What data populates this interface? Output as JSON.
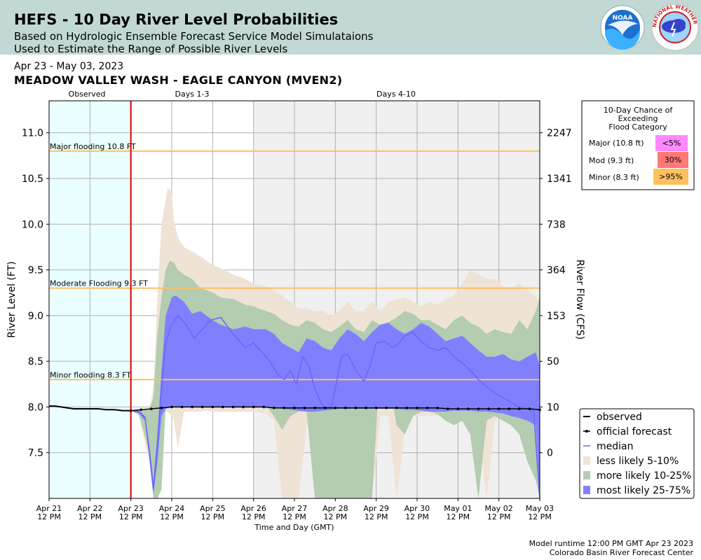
{
  "header": {
    "title": "HEFS - 10 Day River Level Probabilities",
    "subtitle1": "Based on Hydrologic Ensemble Forecast Service Model Simulataions",
    "subtitle2": "Used to Estimate the Range of Possible River Levels",
    "logo_noaa": "NOAA",
    "logo_nws": "NATIONAL WEATHER SERVICE"
  },
  "date_range": "Apr 23 - May 03, 2023",
  "station": "MEADOW VALLEY WASH - EAGLE CANYON (MVEN2)",
  "footer": {
    "line1": "Model runtime 12:00 PM GMT Apr 23 2023",
    "line2": "Colorado Basin River Forecast Center"
  },
  "colors": {
    "observed_bg": "#eaffff",
    "days410_bg": "#f0f0f0",
    "band_5_10": "#eee3d5",
    "band_10_25": "#b4ccb0",
    "band_25_75": "#8080ff",
    "median": "#6666ff",
    "threshold": "#ffc060",
    "now_line": "#dd0000",
    "major_box": "#ff88ff",
    "mod_box": "#ff7777",
    "minor_box": "#ffc060"
  },
  "chart_data": {
    "type": "area",
    "title": "",
    "xlabel": "Time and Day (GMT)",
    "ylabel": "River Level (FT)",
    "ylabel_right": "River Flow (CFS)",
    "x_unit": "days after Apr 21 12 PM",
    "xlim": [
      0,
      12
    ],
    "ylim": [
      7.0,
      11.35
    ],
    "period_labels": [
      "Observed",
      "Days 1-3",
      "Days 4-10"
    ],
    "x_ticks": [
      {
        "d1": "Apr 21",
        "d2": "12 PM"
      },
      {
        "d1": "Apr 22",
        "d2": "12 PM"
      },
      {
        "d1": "Apr 23",
        "d2": "12 PM"
      },
      {
        "d1": "Apr 24",
        "d2": "12 PM"
      },
      {
        "d1": "Apr 25",
        "d2": "12 PM"
      },
      {
        "d1": "Apr 26",
        "d2": "12 PM"
      },
      {
        "d1": "Apr 27",
        "d2": "12 PM"
      },
      {
        "d1": "Apr 28",
        "d2": "12 PM"
      },
      {
        "d1": "Apr 29",
        "d2": "12 PM"
      },
      {
        "d1": "Apr 30",
        "d2": "12 PM"
      },
      {
        "d1": "May 01",
        "d2": "12 PM"
      },
      {
        "d1": "May 02",
        "d2": "12 PM"
      },
      {
        "d1": "May 03",
        "d2": "12 PM"
      }
    ],
    "y_ticks": [
      7.5,
      8.0,
      8.5,
      9.0,
      9.5,
      10.0,
      10.5,
      11.0
    ],
    "y_tick_labels": [
      "7.5",
      "8.0",
      "8.5",
      "9.0",
      "9.5",
      "10.0",
      "10.5",
      "11.0"
    ],
    "y2_ticks": [
      {
        "stage": 7.5,
        "label": "0"
      },
      {
        "stage": 8.0,
        "label": "10"
      },
      {
        "stage": 8.5,
        "label": "50"
      },
      {
        "stage": 9.0,
        "label": "153"
      },
      {
        "stage": 9.5,
        "label": "364"
      },
      {
        "stage": 10.0,
        "label": "738"
      },
      {
        "stage": 10.5,
        "label": "1341"
      },
      {
        "stage": 11.0,
        "label": "2247"
      }
    ],
    "thresholds": [
      {
        "name": "Major flooding 10.8 FT",
        "value": 10.8
      },
      {
        "name": "Moderate Flooding 9.3 FT",
        "value": 9.3
      },
      {
        "name": "Minor flooding 8.3 FT",
        "value": 8.3
      }
    ],
    "forecast_start": 2.0,
    "days410_start": 5.0,
    "observed": {
      "x": [
        0,
        0.15,
        0.3,
        0.45,
        0.6,
        0.8,
        1.0,
        1.2,
        1.4,
        1.6,
        1.8,
        2.0
      ],
      "y": [
        8.01,
        8.01,
        8.0,
        7.99,
        7.98,
        7.98,
        7.98,
        7.98,
        7.97,
        7.97,
        7.96,
        7.96
      ]
    },
    "official_forecast": {
      "x": [
        2.0,
        2.25,
        2.5,
        2.75,
        3.0,
        3.25,
        3.5,
        3.75,
        4.0,
        4.25,
        4.5,
        4.75,
        5.0,
        5.25,
        5.5,
        5.75,
        6.0,
        6.25,
        6.5,
        6.75,
        7.0,
        7.25,
        7.5,
        7.75,
        8.0,
        8.25,
        8.5,
        8.75,
        9.0,
        9.25,
        9.5,
        9.75,
        10.0,
        10.25,
        10.5,
        10.75,
        11.0,
        11.25,
        11.5,
        11.75,
        12.0
      ],
      "y": [
        7.96,
        7.97,
        7.98,
        7.99,
        8.0,
        8.0,
        8.0,
        8.0,
        8.0,
        8.0,
        8.0,
        8.0,
        8.0,
        8.0,
        7.99,
        7.99,
        7.99,
        7.99,
        7.99,
        7.99,
        7.99,
        7.99,
        7.99,
        7.99,
        7.99,
        7.99,
        7.99,
        7.99,
        7.99,
        7.99,
        7.99,
        7.98,
        7.98,
        7.98,
        7.98,
        7.98,
        7.98,
        7.98,
        7.98,
        7.98,
        7.97
      ]
    },
    "bands": [
      {
        "name": "less likely 5-10%",
        "x": [
          2.0,
          2.2,
          2.45,
          2.55,
          2.65,
          2.75,
          2.9,
          3.0,
          3.05,
          3.15,
          3.3,
          3.5,
          3.7,
          3.85,
          4.0,
          4.2,
          4.5,
          4.8,
          5.0,
          5.3,
          5.5,
          5.7,
          5.9,
          6.1,
          6.3,
          6.5,
          6.7,
          6.9,
          7.1,
          7.3,
          7.5,
          7.7,
          7.9,
          8.1,
          8.3,
          8.5,
          8.7,
          8.9,
          9.1,
          9.3,
          9.5,
          9.7,
          9.9,
          10.1,
          10.3,
          10.5,
          10.7,
          10.9,
          11.1,
          11.3,
          11.5,
          11.7,
          11.9,
          12.0
        ],
        "upper": [
          7.96,
          7.97,
          7.97,
          8.2,
          9.2,
          10.0,
          10.4,
          10.35,
          10.05,
          9.85,
          9.75,
          9.7,
          9.65,
          9.6,
          9.55,
          9.52,
          9.45,
          9.4,
          9.35,
          9.32,
          9.28,
          9.22,
          9.15,
          9.08,
          9.08,
          9.05,
          9.05,
          9.0,
          9.05,
          9.15,
          9.05,
          9.05,
          9.15,
          9.05,
          9.15,
          9.18,
          9.2,
          9.15,
          9.1,
          9.15,
          9.12,
          9.18,
          9.22,
          9.35,
          9.5,
          9.45,
          9.4,
          9.4,
          9.32,
          9.3,
          9.35,
          9.28,
          9.2,
          9.18
        ],
        "lower": [
          7.96,
          7.9,
          7.4,
          7.0,
          7.0,
          7.95,
          7.95,
          7.9,
          7.85,
          7.55,
          7.95,
          7.95,
          7.95,
          7.96,
          7.95,
          7.95,
          7.95,
          7.95,
          7.95,
          7.93,
          7.85,
          7.0,
          7.0,
          7.0,
          7.8,
          7.8,
          7.0,
          7.0,
          7.0,
          7.0,
          7.0,
          7.0,
          7.0,
          7.9,
          7.9,
          7.0,
          7.75,
          7.9,
          7.9,
          7.9,
          7.9,
          7.9,
          7.9,
          7.85,
          7.82,
          7.7,
          7.0,
          7.85,
          7.9,
          7.9,
          7.85,
          7.7,
          7.5,
          7.0
        ]
      },
      {
        "name": "more likely 10-25%",
        "x": [
          2.0,
          2.2,
          2.45,
          2.55,
          2.65,
          2.75,
          2.85,
          2.95,
          3.05,
          3.15,
          3.3,
          3.5,
          3.7,
          3.85,
          4.0,
          4.2,
          4.5,
          4.8,
          5.0,
          5.3,
          5.5,
          5.7,
          5.9,
          6.1,
          6.3,
          6.5,
          6.7,
          6.9,
          7.1,
          7.3,
          7.5,
          7.7,
          7.9,
          8.1,
          8.3,
          8.5,
          8.7,
          8.9,
          9.1,
          9.3,
          9.5,
          9.7,
          9.9,
          10.1,
          10.3,
          10.5,
          10.7,
          10.9,
          11.1,
          11.3,
          11.5,
          11.7,
          11.9,
          12.0
        ],
        "upper": [
          7.96,
          7.97,
          7.97,
          8.1,
          8.8,
          9.2,
          9.5,
          9.6,
          9.58,
          9.5,
          9.45,
          9.4,
          9.3,
          9.28,
          9.25,
          9.2,
          9.18,
          9.12,
          9.1,
          9.05,
          9.02,
          8.95,
          8.9,
          8.88,
          8.95,
          8.92,
          8.85,
          8.82,
          8.88,
          8.95,
          8.85,
          8.82,
          8.95,
          8.9,
          8.93,
          8.98,
          9.05,
          9.02,
          8.95,
          8.95,
          8.9,
          8.85,
          8.95,
          9.0,
          8.92,
          8.88,
          8.8,
          8.85,
          8.82,
          8.8,
          8.95,
          8.85,
          9.05,
          9.2
        ],
        "lower": [
          7.96,
          7.92,
          7.5,
          7.0,
          7.0,
          7.1,
          8.0,
          8.3,
          8.2,
          8.0,
          8.35,
          8.6,
          8.55,
          8.45,
          8.4,
          8.3,
          8.25,
          8.2,
          8.1,
          8.02,
          7.9,
          7.75,
          7.9,
          7.95,
          7.95,
          7.0,
          7.0,
          7.0,
          7.0,
          7.0,
          7.0,
          7.0,
          7.0,
          8.5,
          8.3,
          7.8,
          7.7,
          7.9,
          7.95,
          7.95,
          7.92,
          7.85,
          7.8,
          7.85,
          7.7,
          7.0,
          7.85,
          7.9,
          7.85,
          7.8,
          7.7,
          7.4,
          7.2,
          7.0
        ]
      },
      {
        "name": "most likely 25-75%",
        "x": [
          2.0,
          2.2,
          2.35,
          2.45,
          2.55,
          2.65,
          2.75,
          2.85,
          3.0,
          3.1,
          3.3,
          3.5,
          3.7,
          3.85,
          4.0,
          4.2,
          4.5,
          4.8,
          5.0,
          5.3,
          5.5,
          5.7,
          5.9,
          6.1,
          6.3,
          6.5,
          6.7,
          6.9,
          7.1,
          7.3,
          7.5,
          7.7,
          7.9,
          8.1,
          8.3,
          8.5,
          8.7,
          8.9,
          9.1,
          9.3,
          9.5,
          9.7,
          9.9,
          10.1,
          10.3,
          10.5,
          10.7,
          10.9,
          11.1,
          11.3,
          11.5,
          11.7,
          11.9,
          12.0
        ],
        "upper": [
          7.96,
          7.96,
          7.9,
          7.6,
          7.2,
          7.7,
          8.4,
          9.0,
          9.2,
          9.22,
          9.15,
          9.02,
          9.05,
          9.0,
          8.95,
          8.9,
          8.85,
          8.88,
          8.85,
          8.85,
          8.8,
          8.7,
          8.65,
          8.6,
          8.75,
          8.72,
          8.65,
          8.62,
          8.75,
          8.85,
          8.8,
          8.72,
          8.82,
          8.9,
          8.92,
          8.85,
          8.8,
          8.85,
          8.92,
          8.88,
          8.8,
          8.72,
          8.75,
          8.78,
          8.7,
          8.62,
          8.55,
          8.55,
          8.58,
          8.52,
          8.5,
          8.55,
          8.6,
          8.45
        ],
        "lower": [
          7.96,
          7.93,
          7.85,
          7.5,
          7.05,
          7.4,
          7.9,
          7.98,
          8.0,
          8.0,
          8.0,
          8.0,
          8.0,
          8.0,
          8.0,
          8.0,
          8.0,
          8.0,
          8.0,
          8.0,
          7.99,
          7.98,
          7.97,
          7.96,
          7.95,
          7.95,
          7.96,
          7.97,
          7.98,
          7.98,
          7.98,
          7.98,
          7.98,
          7.98,
          7.98,
          7.98,
          7.97,
          7.97,
          7.96,
          7.95,
          7.95,
          7.95,
          7.96,
          7.96,
          7.96,
          7.95,
          7.95,
          7.94,
          7.93,
          7.9,
          7.88,
          7.85,
          7.8,
          7.0
        ]
      }
    ],
    "median": {
      "x": [
        2.0,
        2.2,
        2.35,
        2.45,
        2.55,
        2.65,
        2.75,
        2.85,
        3.0,
        3.15,
        3.35,
        3.55,
        3.75,
        3.95,
        4.2,
        4.5,
        4.8,
        5.0,
        5.2,
        5.4,
        5.6,
        5.75,
        5.9,
        6.05,
        6.2,
        6.35,
        6.5,
        6.7,
        6.9,
        7.0,
        7.15,
        7.3,
        7.5,
        7.7,
        7.85,
        8.0,
        8.2,
        8.4,
        8.55,
        8.7,
        8.9,
        9.1,
        9.3,
        9.5,
        9.7,
        9.9,
        10.1,
        10.3,
        10.5,
        10.7,
        10.9,
        11.1,
        11.3,
        11.5,
        11.7,
        11.85,
        12.0
      ],
      "y": [
        7.96,
        7.95,
        7.88,
        7.5,
        7.1,
        7.6,
        8.2,
        8.7,
        8.9,
        9.0,
        8.9,
        8.75,
        8.85,
        8.95,
        8.98,
        8.8,
        8.65,
        8.7,
        8.6,
        8.5,
        8.35,
        8.3,
        8.4,
        8.25,
        8.55,
        8.45,
        8.2,
        8.0,
        8.0,
        8.2,
        8.55,
        8.58,
        8.4,
        8.28,
        8.45,
        8.7,
        8.72,
        8.65,
        8.7,
        8.78,
        8.82,
        8.72,
        8.65,
        8.62,
        8.65,
        8.55,
        8.48,
        8.4,
        8.3,
        8.22,
        8.15,
        8.1,
        8.05,
        8.0,
        7.98,
        7.95,
        7.0
      ]
    },
    "legend": {
      "position": "bottom-right",
      "entries": [
        "observed",
        "official forecast",
        "median",
        "less likely 5-10%",
        "more likely 10-25%",
        "most likely 25-75%"
      ]
    }
  },
  "flood_table": {
    "title_lines": [
      "10-Day Chance of",
      "Exceeding",
      "Flood Category"
    ],
    "rows": [
      {
        "label": "Major (10.8 ft)",
        "value": "<5%",
        "color": "#ff88ff"
      },
      {
        "label": "Mod (9.3 ft)",
        "value": "30%",
        "color": "#ff7777"
      },
      {
        "label": "Minor (8.3 ft)",
        "value": ">95%",
        "color": "#ffc060"
      }
    ]
  }
}
